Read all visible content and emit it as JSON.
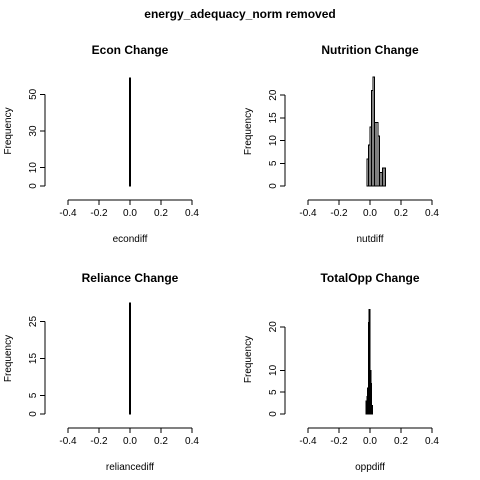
{
  "page_title": "energy_adequacy_norm removed",
  "chart_data": [
    {
      "type": "bar",
      "title": "Econ Change",
      "xlabel": "econdiff",
      "ylabel": "Frequency",
      "xlim": [
        -0.5,
        0.5
      ],
      "ylim": [
        0,
        60
      ],
      "xticks": [
        "-0.4",
        "-0.2",
        "0.0",
        "0.2",
        "0.4"
      ],
      "yticks": [
        "0",
        "10",
        "30",
        "50"
      ],
      "bins": [
        {
          "x0": -0.002,
          "x1": 0.002,
          "count": 59
        }
      ]
    },
    {
      "type": "bar",
      "title": "Nutrition Change",
      "xlabel": "nutdiff",
      "ylabel": "Frequency",
      "xlim": [
        -0.5,
        0.5
      ],
      "ylim": [
        0,
        24
      ],
      "xticks": [
        "-0.4",
        "-0.2",
        "0.0",
        "0.2",
        "0.4"
      ],
      "yticks": [
        "0",
        "5",
        "10",
        "15",
        "20"
      ],
      "bins": [
        {
          "x0": -0.02,
          "x1": -0.01,
          "count": 6
        },
        {
          "x0": -0.01,
          "x1": 0.0,
          "count": 9
        },
        {
          "x0": 0.0,
          "x1": 0.01,
          "count": 13
        },
        {
          "x0": 0.01,
          "x1": 0.02,
          "count": 21
        },
        {
          "x0": 0.02,
          "x1": 0.03,
          "count": 24
        },
        {
          "x0": 0.03,
          "x1": 0.04,
          "count": 14
        },
        {
          "x0": 0.04,
          "x1": 0.05,
          "count": 14
        },
        {
          "x0": 0.05,
          "x1": 0.06,
          "count": 11
        },
        {
          "x0": 0.06,
          "x1": 0.07,
          "count": 3
        },
        {
          "x0": 0.07,
          "x1": 0.08,
          "count": 3
        },
        {
          "x0": 0.08,
          "x1": 0.09,
          "count": 4
        },
        {
          "x0": 0.09,
          "x1": 0.1,
          "count": 4
        }
      ]
    },
    {
      "type": "bar",
      "title": "Reliance Change",
      "xlabel": "reliancediff",
      "ylabel": "Frequency",
      "xlim": [
        -0.5,
        0.5
      ],
      "ylim": [
        0,
        30
      ],
      "xticks": [
        "-0.4",
        "-0.2",
        "0.0",
        "0.2",
        "0.4"
      ],
      "yticks": [
        "0",
        "5",
        "15",
        "25"
      ],
      "bins": [
        {
          "x0": -0.002,
          "x1": 0.002,
          "count": 30
        }
      ]
    },
    {
      "type": "bar",
      "title": "TotalOpp Change",
      "xlabel": "oppdiff",
      "ylabel": "Frequency",
      "xlim": [
        -0.5,
        0.5
      ],
      "ylim": [
        0,
        25
      ],
      "xticks": [
        "-0.4",
        "-0.2",
        "0.0",
        "0.2",
        "0.4"
      ],
      "yticks": [
        "0",
        "5",
        "10",
        "20"
      ],
      "bins": [
        {
          "x0": -0.025,
          "x1": -0.02,
          "count": 3
        },
        {
          "x0": -0.02,
          "x1": -0.015,
          "count": 4
        },
        {
          "x0": -0.015,
          "x1": -0.01,
          "count": 6
        },
        {
          "x0": -0.01,
          "x1": -0.005,
          "count": 21
        },
        {
          "x0": -0.005,
          "x1": 0.0,
          "count": 24
        },
        {
          "x0": 0.0,
          "x1": 0.005,
          "count": 10
        },
        {
          "x0": 0.005,
          "x1": 0.01,
          "count": 7
        },
        {
          "x0": 0.01,
          "x1": 0.015,
          "count": 2
        }
      ]
    }
  ]
}
